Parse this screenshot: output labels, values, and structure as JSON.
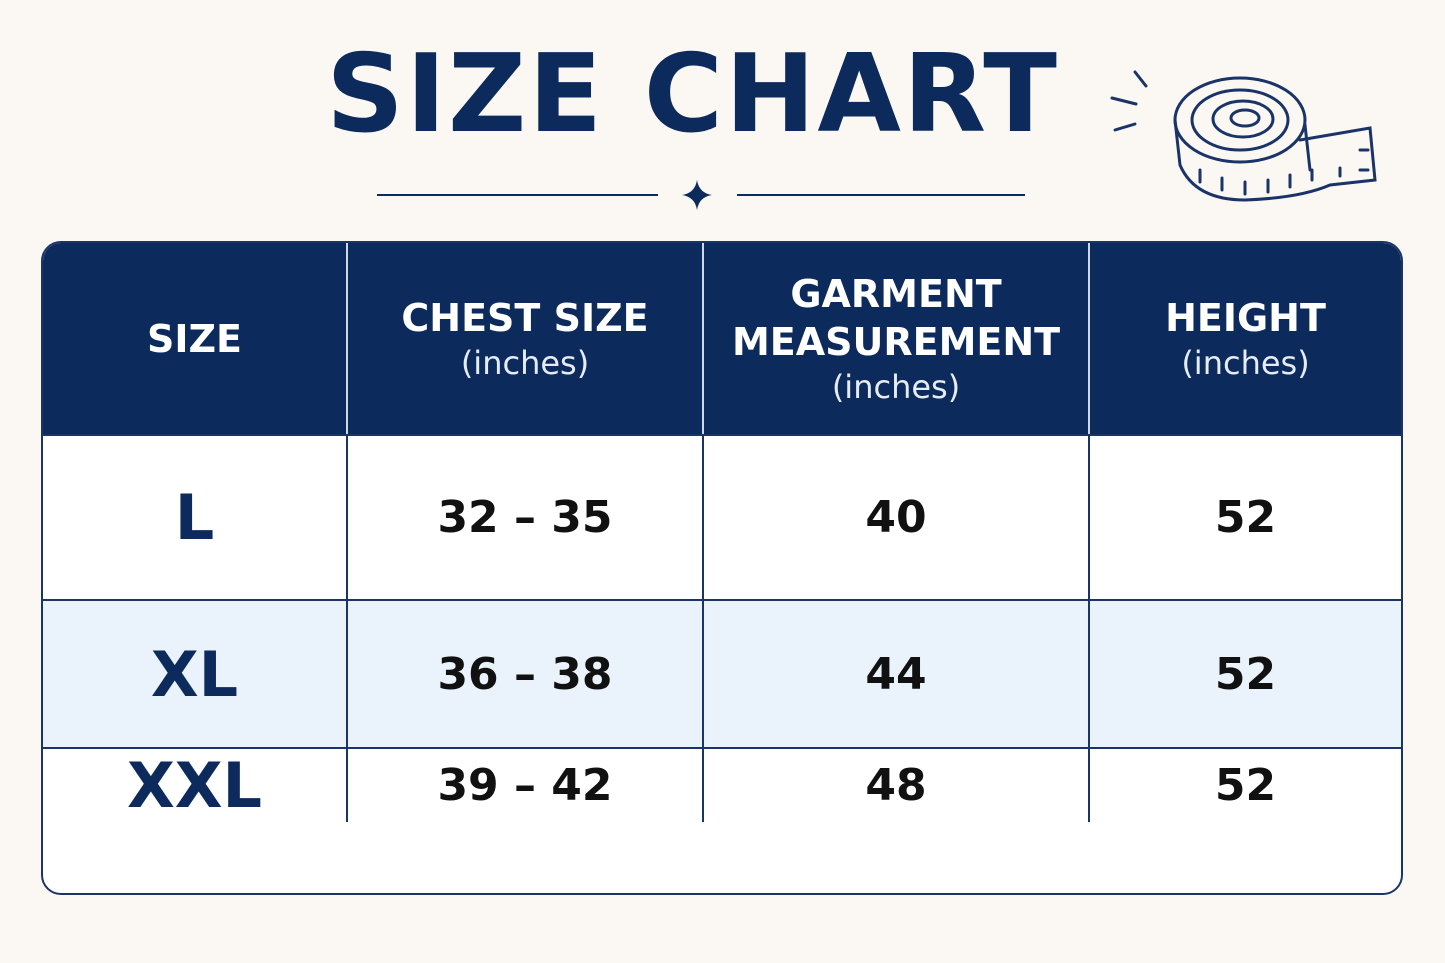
{
  "header": {
    "title": "SIZE CHART"
  },
  "table": {
    "columns": [
      {
        "label": "SIZE"
      },
      {
        "label": "CHEST SIZE",
        "unit": "(inches)"
      },
      {
        "label": "GARMENT MEASUREMENT",
        "unit": "(inches)"
      },
      {
        "label": "HEIGHT",
        "unit": "(inches)"
      }
    ],
    "rows": [
      [
        "L",
        "32 – 35",
        "40",
        "52"
      ],
      [
        "XL",
        "36 – 38",
        "44",
        "52"
      ],
      [
        "XXL",
        "39 – 42",
        "48",
        "52"
      ]
    ]
  }
}
